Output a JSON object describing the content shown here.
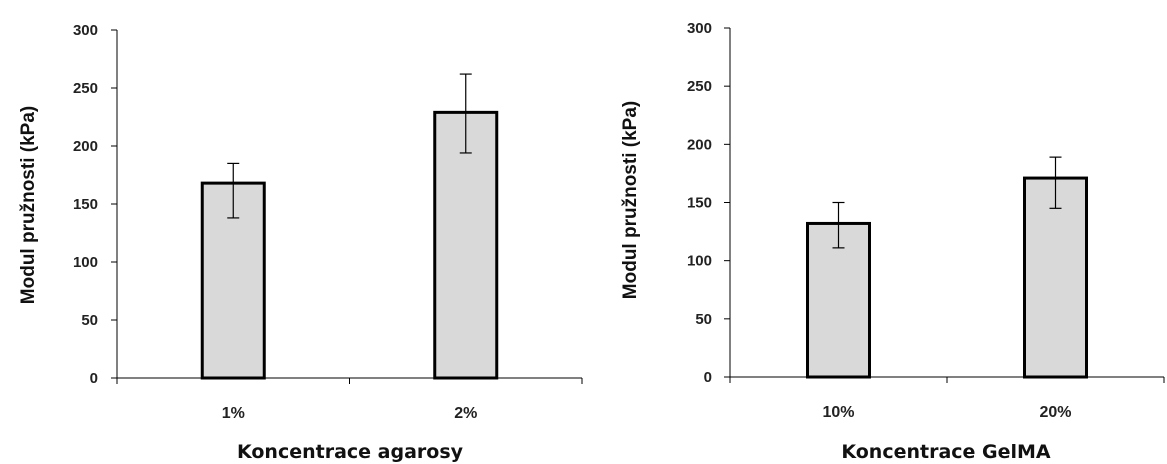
{
  "chart_data": [
    {
      "type": "bar",
      "title": "",
      "xlabel": "Koncentrace agarosy",
      "ylabel": "Modul pružnosti (kPa)",
      "categories": [
        "1%",
        "2%"
      ],
      "values": [
        168,
        229
      ],
      "error_low": [
        138,
        194
      ],
      "error_high": [
        185,
        262
      ],
      "ylim": [
        0,
        300
      ],
      "yticks": [
        0,
        50,
        100,
        150,
        200,
        250,
        300
      ],
      "grid": false,
      "bar_color": "#d9d9d9",
      "edge_color": "#000000"
    },
    {
      "type": "bar",
      "title": "",
      "xlabel": "Koncentrace GelMA",
      "ylabel": "Modul pružnosti (kPa)",
      "categories": [
        "10%",
        "20%"
      ],
      "values": [
        132,
        171
      ],
      "error_low": [
        111,
        145
      ],
      "error_high": [
        150,
        189
      ],
      "ylim": [
        0,
        300
      ],
      "yticks": [
        0,
        50,
        100,
        150,
        200,
        250,
        300
      ],
      "grid": false,
      "bar_color": "#d9d9d9",
      "edge_color": "#000000"
    }
  ]
}
